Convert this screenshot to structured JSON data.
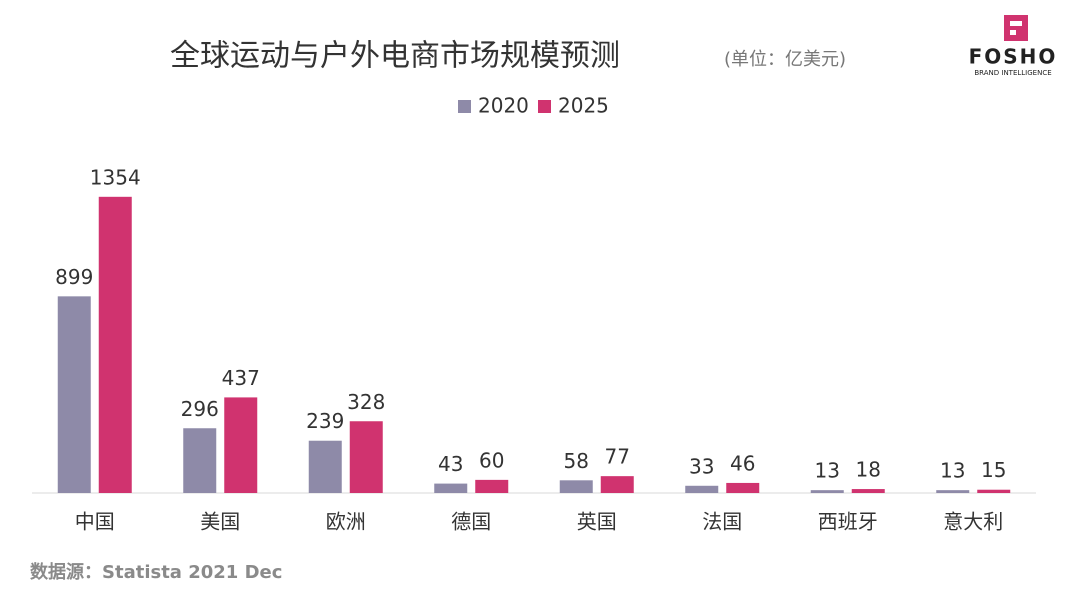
{
  "chart_data": {
    "type": "bar",
    "title": "全球运动与户外电商市场规模预测",
    "subtitle": "(单位：亿美元)",
    "source": "数据源：Statista 2021 Dec",
    "categories": [
      "中国",
      "美国",
      "欧洲",
      "德国",
      "英国",
      "法国",
      "西班牙",
      "意大利"
    ],
    "series": [
      {
        "name": "2020",
        "color": "#8e8aa8",
        "values": [
          899,
          296,
          239,
          43,
          58,
          33,
          13,
          13
        ]
      },
      {
        "name": "2025",
        "color": "#d0336f",
        "values": [
          1354,
          437,
          328,
          60,
          77,
          46,
          18,
          15
        ]
      }
    ],
    "ylim": [
      0,
      1600
    ],
    "legend": "top"
  },
  "logo": {
    "name": "FOSHO",
    "tagline": "BRAND INTELLIGENCE"
  }
}
